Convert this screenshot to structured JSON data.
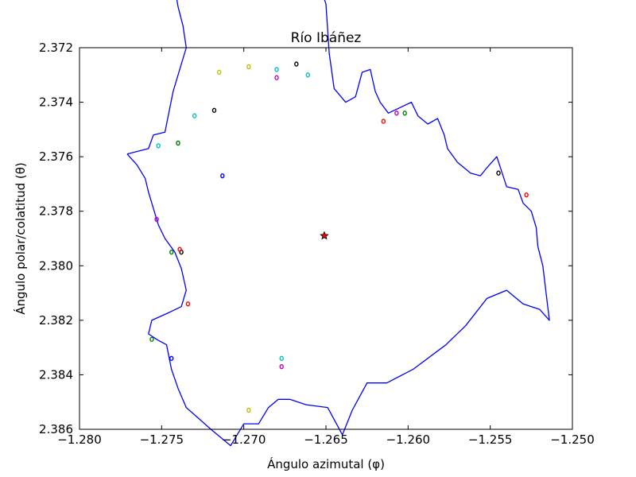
{
  "chart_data": {
    "type": "line",
    "title": "Río Ibáñez",
    "xlabel": "Ángulo azimutal (φ)",
    "ylabel": "Ángulo polar/colatitud (θ)",
    "xlim": [
      -1.28,
      -1.25
    ],
    "ylim": [
      2.372,
      2.386
    ],
    "y_inverted": true,
    "grid": false,
    "xticks": [
      -1.28,
      -1.275,
      -1.27,
      -1.265,
      -1.26,
      -1.255,
      -1.25
    ],
    "xtick_labels": [
      "−1.280",
      "−1.275",
      "−1.270",
      "−1.265",
      "−1.260",
      "−1.255",
      "−1.250"
    ],
    "yticks": [
      2.372,
      2.374,
      2.376,
      2.378,
      2.38,
      2.382,
      2.384,
      2.386
    ],
    "ytick_labels": [
      "2.372",
      "2.374",
      "2.376",
      "2.378",
      "2.380",
      "2.382",
      "2.384",
      "2.386"
    ],
    "boundary": {
      "color": "#0000ff",
      "points": [
        [
          -1.2771,
          2.3759
        ],
        [
          -1.2758,
          2.3757
        ],
        [
          -1.2755,
          2.3752
        ],
        [
          -1.2748,
          2.3751
        ],
        [
          -1.2746,
          2.3745
        ],
        [
          -1.2743,
          2.3736
        ],
        [
          -1.2738,
          2.3726
        ],
        [
          -1.2735,
          2.372
        ],
        [
          -1.2737,
          2.3712
        ],
        [
          -1.274,
          2.3705
        ],
        [
          -1.2742,
          2.3698
        ],
        [
          -1.2739,
          2.369
        ],
        [
          -1.2736,
          2.3685
        ],
        [
          -1.2728,
          2.3682
        ],
        [
          -1.272,
          2.3685
        ],
        [
          -1.2712,
          2.3678
        ],
        [
          -1.2704,
          2.3678
        ],
        [
          -1.27,
          2.3677
        ],
        [
          -1.2695,
          2.3684
        ],
        [
          -1.269,
          2.368
        ],
        [
          -1.2684,
          2.3679
        ],
        [
          -1.2678,
          2.3687
        ],
        [
          -1.2672,
          2.3684
        ],
        [
          -1.2667,
          2.368
        ],
        [
          -1.2661,
          2.3683
        ],
        [
          -1.2656,
          2.3693
        ],
        [
          -1.265,
          2.3704
        ],
        [
          -1.2648,
          2.3722
        ],
        [
          -1.2645,
          2.3735
        ],
        [
          -1.2638,
          2.374
        ],
        [
          -1.2632,
          2.3738
        ],
        [
          -1.2628,
          2.3729
        ],
        [
          -1.2623,
          2.3728
        ],
        [
          -1.262,
          2.3736
        ],
        [
          -1.2617,
          2.374
        ],
        [
          -1.2612,
          2.3744
        ],
        [
          -1.2605,
          2.3742
        ],
        [
          -1.2598,
          2.374
        ],
        [
          -1.2594,
          2.3745
        ],
        [
          -1.2588,
          2.3748
        ],
        [
          -1.2582,
          2.3746
        ],
        [
          -1.2578,
          2.3752
        ],
        [
          -1.2576,
          2.3757
        ],
        [
          -1.257,
          2.3762
        ],
        [
          -1.2562,
          2.3766
        ],
        [
          -1.2556,
          2.3767
        ],
        [
          -1.2552,
          2.3764
        ],
        [
          -1.2546,
          2.376
        ],
        [
          -1.254,
          2.3771
        ],
        [
          -1.2533,
          2.3772
        ],
        [
          -1.253,
          2.3777
        ],
        [
          -1.2525,
          2.378
        ],
        [
          -1.2522,
          2.3786
        ],
        [
          -1.2521,
          2.3793
        ],
        [
          -1.2518,
          2.38
        ],
        [
          -1.2516,
          2.381
        ],
        [
          -1.2514,
          2.382
        ],
        [
          -1.252,
          2.3816
        ],
        [
          -1.253,
          2.3814
        ],
        [
          -1.254,
          2.3809
        ],
        [
          -1.2552,
          2.3812
        ],
        [
          -1.2565,
          2.3822
        ],
        [
          -1.2577,
          2.3829
        ],
        [
          -1.2597,
          2.3838
        ],
        [
          -1.2613,
          2.3843
        ],
        [
          -1.2625,
          2.3843
        ],
        [
          -1.2634,
          2.3853
        ],
        [
          -1.264,
          2.3862
        ],
        [
          -1.2649,
          2.3852
        ],
        [
          -1.2662,
          2.3851
        ],
        [
          -1.2672,
          2.3849
        ],
        [
          -1.2679,
          2.3849
        ],
        [
          -1.2685,
          2.3852
        ],
        [
          -1.2691,
          2.3858
        ],
        [
          -1.27,
          2.3858
        ],
        [
          -1.2708,
          2.3866
        ],
        [
          -1.272,
          2.386
        ],
        [
          -1.2735,
          2.3852
        ],
        [
          -1.274,
          2.3845
        ],
        [
          -1.2744,
          2.3838
        ],
        [
          -1.2747,
          2.3829
        ],
        [
          -1.2753,
          2.3827
        ],
        [
          -1.2758,
          2.3825
        ],
        [
          -1.2756,
          2.382
        ],
        [
          -1.2745,
          2.3817
        ],
        [
          -1.2738,
          2.3815
        ],
        [
          -1.2735,
          2.3809
        ],
        [
          -1.2738,
          2.3801
        ],
        [
          -1.2742,
          2.3795
        ],
        [
          -1.2748,
          2.379
        ],
        [
          -1.2752,
          2.3785
        ],
        [
          -1.2755,
          2.3779
        ],
        [
          -1.2758,
          2.3773
        ],
        [
          -1.276,
          2.3768
        ],
        [
          -1.2765,
          2.3763
        ],
        [
          -1.2771,
          2.3759
        ]
      ]
    },
    "features": [
      {
        "x": -1.2715,
        "y": 2.3729,
        "color": "#bfbf00"
      },
      {
        "x": -1.2697,
        "y": 2.3727,
        "color": "#bfbf00"
      },
      {
        "x": -1.268,
        "y": 2.3731,
        "color": "#bf00bf"
      },
      {
        "x": -1.268,
        "y": 2.3728,
        "color": "#00bfbf"
      },
      {
        "x": -1.2668,
        "y": 2.3726,
        "color": "#000000"
      },
      {
        "x": -1.2661,
        "y": 2.373,
        "color": "#00bfbf"
      },
      {
        "x": -1.2718,
        "y": 2.3743,
        "color": "#000000"
      },
      {
        "x": -1.273,
        "y": 2.3745,
        "color": "#00bfbf"
      },
      {
        "x": -1.274,
        "y": 2.3755,
        "color": "#008000"
      },
      {
        "x": -1.2752,
        "y": 2.3756,
        "color": "#00bfbf"
      },
      {
        "x": -1.2713,
        "y": 2.3767,
        "color": "#0000ff"
      },
      {
        "x": -1.2615,
        "y": 2.3747,
        "color": "#ff0000"
      },
      {
        "x": -1.2607,
        "y": 2.3744,
        "color": "#bf00bf"
      },
      {
        "x": -1.2602,
        "y": 2.3744,
        "color": "#008000"
      },
      {
        "x": -1.2545,
        "y": 2.3766,
        "color": "#000000"
      },
      {
        "x": -1.2528,
        "y": 2.3774,
        "color": "#ff0000"
      },
      {
        "x": -1.2753,
        "y": 2.3783,
        "color": "#bf00bf"
      },
      {
        "x": -1.2738,
        "y": 2.3795,
        "color": "#000000"
      },
      {
        "x": -1.2744,
        "y": 2.3795,
        "color": "#008000"
      },
      {
        "x": -1.2739,
        "y": 2.3794,
        "color": "#ff0000"
      },
      {
        "x": -1.2734,
        "y": 2.3814,
        "color": "#ff0000"
      },
      {
        "x": -1.2756,
        "y": 2.3827,
        "color": "#008000"
      },
      {
        "x": -1.2744,
        "y": 2.3834,
        "color": "#0000ff"
      },
      {
        "x": -1.2677,
        "y": 2.3837,
        "color": "#bf00bf"
      },
      {
        "x": -1.2677,
        "y": 2.3834,
        "color": "#00bfbf"
      },
      {
        "x": -1.2697,
        "y": 2.3853,
        "color": "#bfbf00"
      }
    ],
    "marker": {
      "x": -1.2651,
      "y": 2.3789,
      "symbol": "star",
      "color": "#ff0000"
    }
  }
}
